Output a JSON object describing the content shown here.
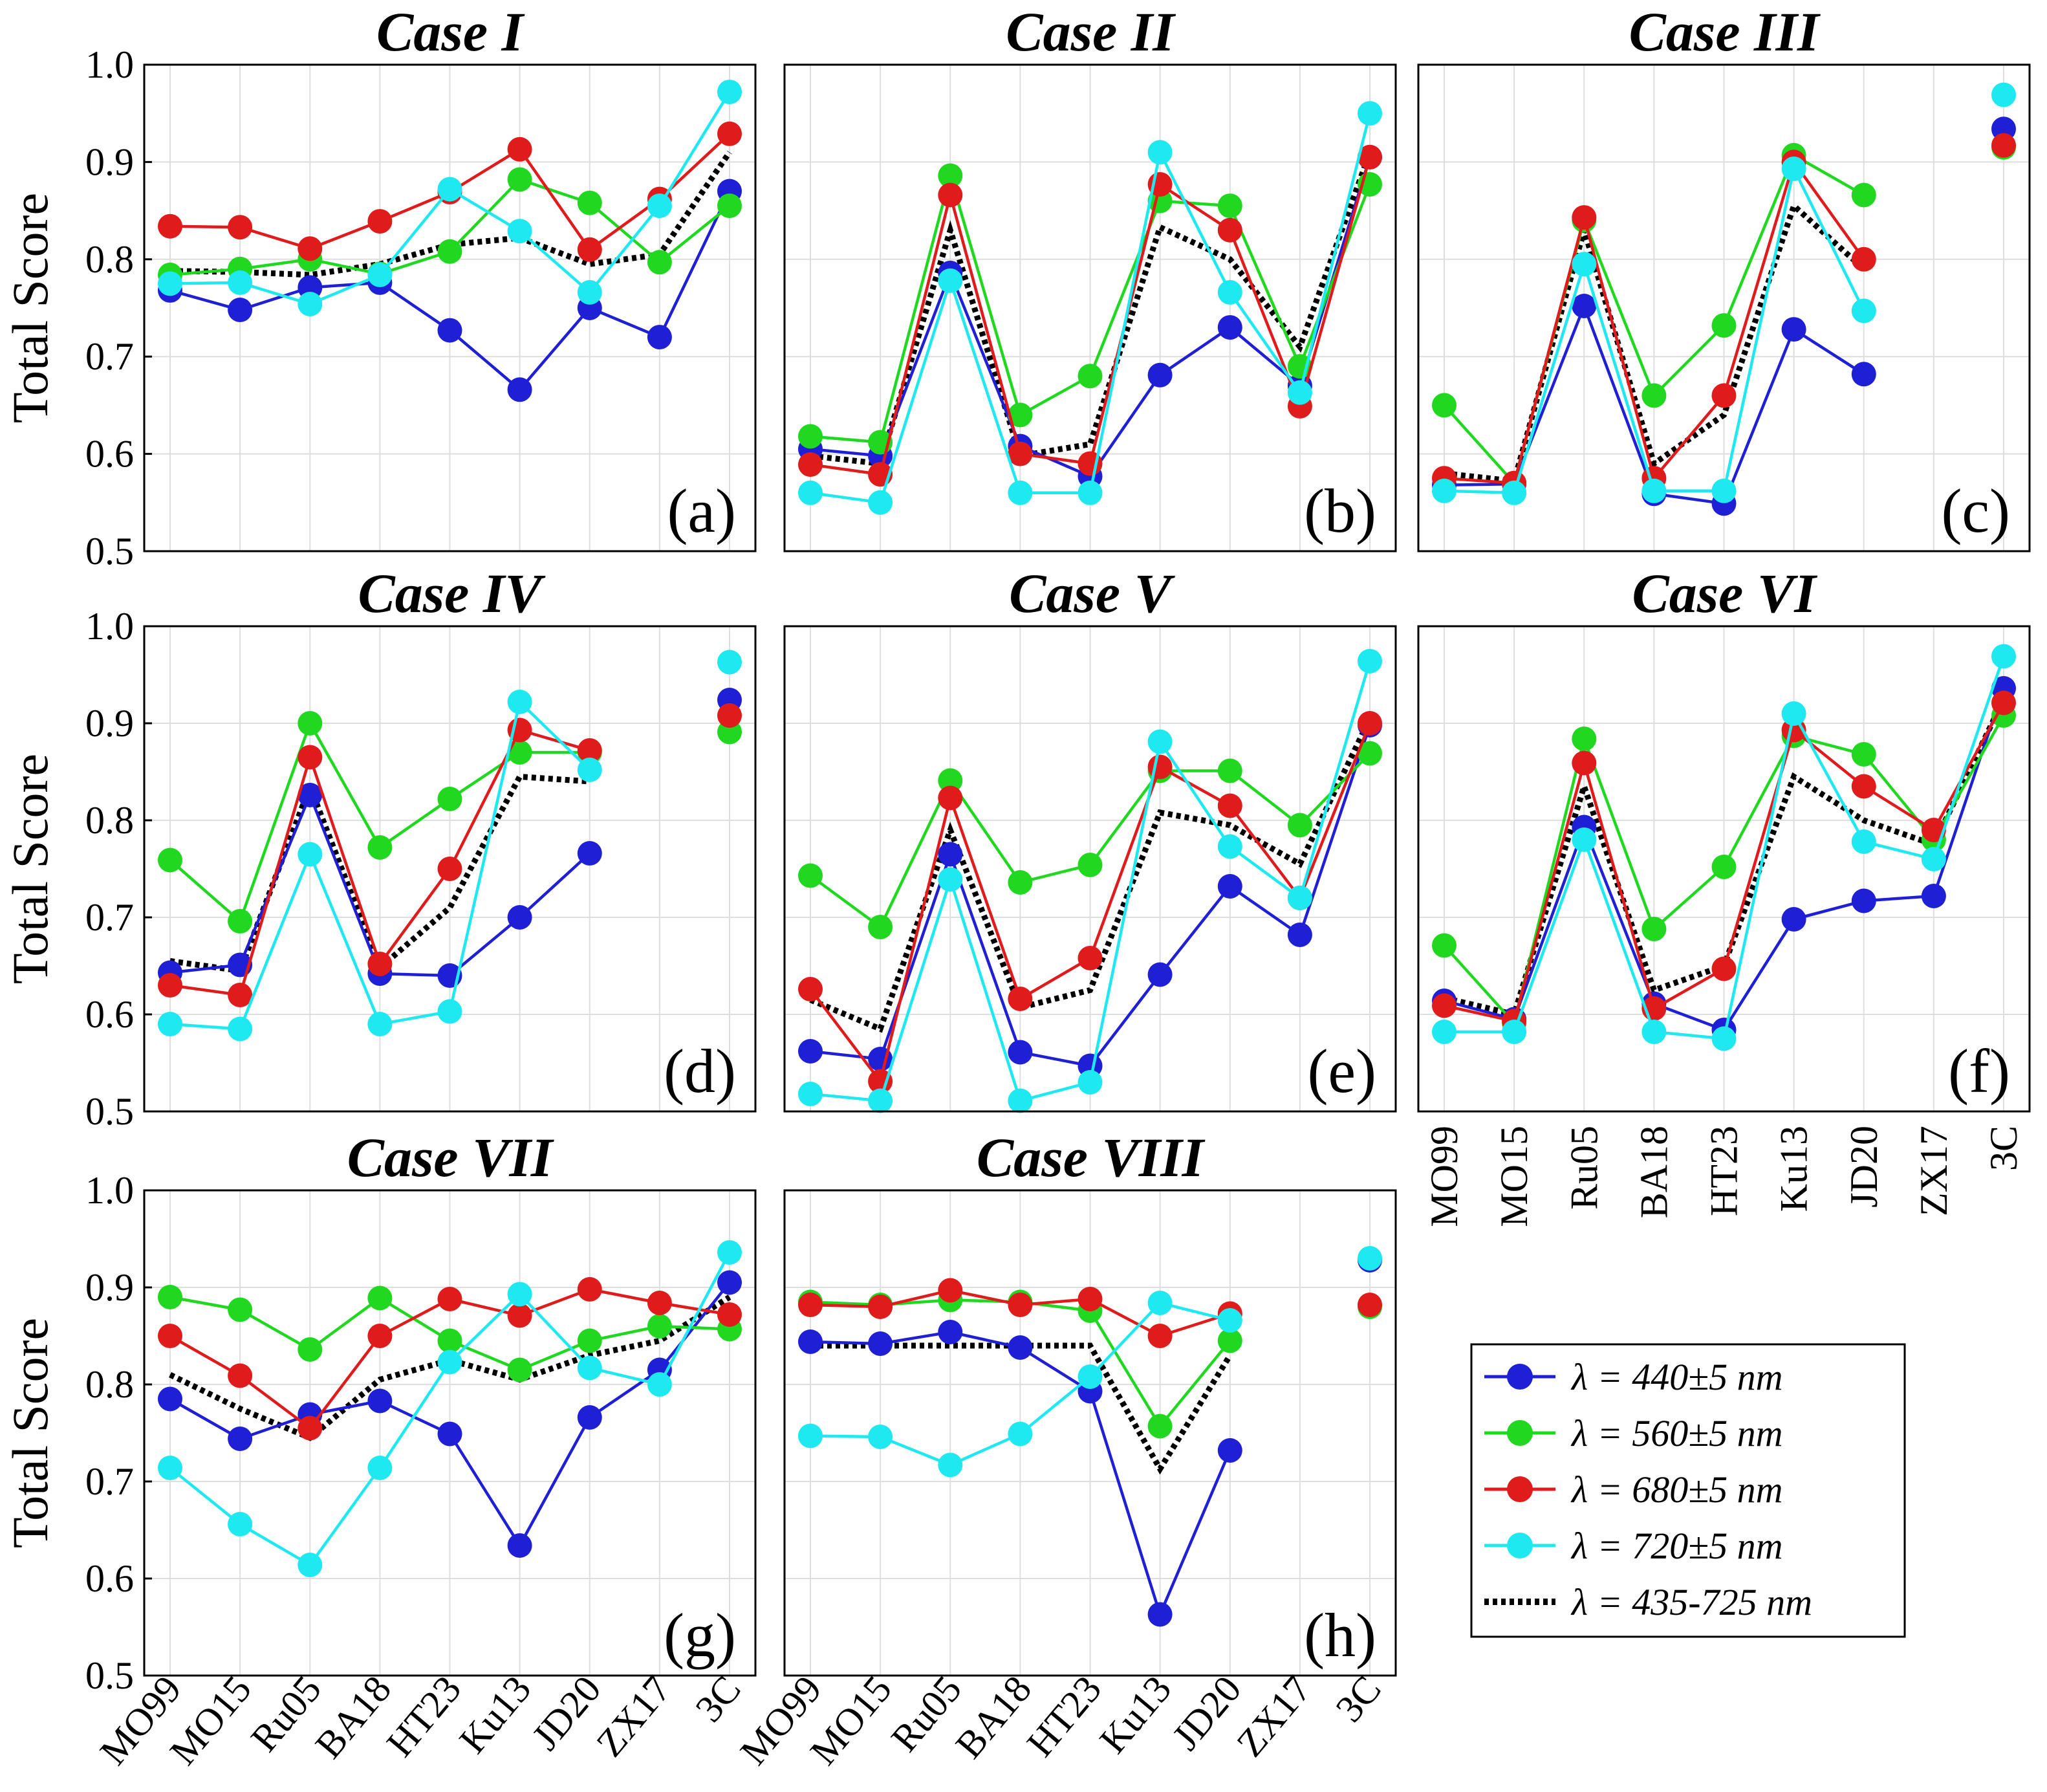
{
  "chart_data": {
    "type": "line",
    "shared": {
      "categories": [
        "MO99",
        "MO15",
        "Ru05",
        "BA18",
        "HT23",
        "Ku13",
        "JD20",
        "ZX17",
        "3C"
      ],
      "ylabel": "Total Score",
      "ylim": [
        0.5,
        1.0
      ],
      "yticks": [
        "0.5",
        "0.6",
        "0.7",
        "0.8",
        "0.9",
        "1.0"
      ],
      "grid": true,
      "legend": {
        "placement": "bottom-right",
        "entries": [
          {
            "key": "b440",
            "label": "λ = 440±5 nm",
            "color": "#1f1fd6",
            "style": "solid-marker"
          },
          {
            "key": "b560",
            "label": "λ = 560±5 nm",
            "color": "#20d820",
            "style": "solid-marker"
          },
          {
            "key": "b680",
            "label": "λ = 680±5 nm",
            "color": "#e01b1b",
            "style": "solid-marker"
          },
          {
            "key": "b720",
            "label": "λ = 720±5 nm",
            "color": "#1ee8f0",
            "style": "solid-marker"
          },
          {
            "key": "broad",
            "label": "λ = 435-725 nm",
            "color": "#000000",
            "style": "dotted"
          }
        ]
      }
    },
    "panels": [
      {
        "title": "Case I",
        "label": "(a)",
        "series": {
          "b440": [
            0.768,
            0.748,
            0.771,
            0.776,
            0.727,
            0.666,
            0.75,
            0.72,
            0.87
          ],
          "b560": [
            0.784,
            0.79,
            0.8,
            0.785,
            0.808,
            0.882,
            0.858,
            0.797,
            0.855
          ],
          "b680": [
            0.834,
            0.833,
            0.811,
            0.839,
            0.869,
            0.913,
            0.81,
            0.862,
            0.929
          ],
          "b720": [
            0.775,
            0.776,
            0.754,
            0.784,
            0.872,
            0.829,
            0.766,
            0.855,
            0.972
          ],
          "broad": [
            0.788,
            0.787,
            0.784,
            0.795,
            0.815,
            0.822,
            0.795,
            0.805,
            0.91
          ]
        }
      },
      {
        "title": "Case II",
        "label": "(b)",
        "series": {
          "b440": [
            0.605,
            0.598,
            0.786,
            0.608,
            0.577,
            0.681,
            0.73,
            0.67,
            0.905
          ],
          "b560": [
            0.618,
            0.612,
            0.886,
            0.64,
            0.68,
            0.86,
            0.855,
            0.69,
            0.877
          ],
          "b680": [
            0.589,
            0.579,
            0.866,
            0.6,
            0.59,
            0.877,
            0.83,
            0.649,
            0.905
          ],
          "b720": [
            0.56,
            0.55,
            0.778,
            0.56,
            0.56,
            0.91,
            0.766,
            0.663,
            0.95
          ],
          "broad": [
            0.598,
            0.59,
            0.83,
            0.598,
            0.61,
            0.833,
            0.8,
            0.71,
            0.91
          ]
        }
      },
      {
        "title": "Case III",
        "label": "(c)",
        "series": {
          "b440": [
            0.568,
            0.569,
            0.752,
            0.559,
            0.549,
            0.728,
            0.682,
            null,
            0.934
          ],
          "b560": [
            0.65,
            0.57,
            0.84,
            0.66,
            0.732,
            0.907,
            0.866,
            null,
            0.915
          ],
          "b680": [
            0.575,
            0.57,
            0.843,
            0.575,
            0.66,
            0.9,
            0.8,
            null,
            0.917
          ],
          "b720": [
            0.562,
            0.56,
            0.795,
            0.562,
            0.562,
            0.893,
            0.747,
            null,
            0.969
          ],
          "broad": [
            0.58,
            0.572,
            0.83,
            0.59,
            0.64,
            0.855,
            0.79,
            null,
            0.92
          ]
        }
      },
      {
        "title": "Case IV",
        "label": "(d)",
        "series": {
          "b440": [
            0.643,
            0.651,
            0.826,
            0.642,
            0.64,
            0.7,
            0.766,
            null,
            0.924
          ],
          "b560": [
            0.759,
            0.696,
            0.9,
            0.772,
            0.822,
            0.87,
            0.87,
            null,
            0.891
          ],
          "b680": [
            0.63,
            0.62,
            0.865,
            0.652,
            0.75,
            0.893,
            0.872,
            null,
            0.908
          ],
          "b720": [
            0.59,
            0.585,
            0.765,
            0.59,
            0.603,
            0.922,
            0.852,
            null,
            0.963
          ],
          "broad": [
            0.655,
            0.645,
            0.835,
            0.648,
            0.71,
            0.845,
            0.84,
            null,
            0.918
          ]
        }
      },
      {
        "title": "Case V",
        "label": "(e)",
        "series": {
          "b440": [
            0.562,
            0.554,
            0.765,
            0.561,
            0.547,
            0.641,
            0.732,
            0.682,
            0.898
          ],
          "b560": [
            0.743,
            0.69,
            0.841,
            0.736,
            0.754,
            0.851,
            0.851,
            0.795,
            0.869
          ],
          "b680": [
            0.626,
            0.531,
            0.823,
            0.616,
            0.658,
            0.855,
            0.815,
            0.72,
            0.9
          ],
          "b720": [
            0.518,
            0.511,
            0.739,
            0.511,
            0.53,
            0.881,
            0.773,
            0.72,
            0.964
          ],
          "broad": [
            0.615,
            0.585,
            0.79,
            0.607,
            0.625,
            0.808,
            0.795,
            0.755,
            0.905
          ]
        }
      },
      {
        "title": "Case VI",
        "label": "(f)",
        "series": {
          "b440": [
            0.614,
            0.595,
            0.793,
            0.611,
            0.584,
            0.698,
            0.717,
            0.722,
            0.936
          ],
          "b560": [
            0.671,
            0.591,
            0.884,
            0.688,
            0.752,
            0.887,
            0.868,
            0.78,
            0.908
          ],
          "b680": [
            0.609,
            0.593,
            0.859,
            0.606,
            0.647,
            0.893,
            0.835,
            0.79,
            0.921
          ],
          "b720": [
            0.582,
            0.582,
            0.78,
            0.582,
            0.575,
            0.91,
            0.778,
            0.76,
            0.969
          ],
          "broad": [
            0.617,
            0.6,
            0.835,
            0.625,
            0.65,
            0.845,
            0.8,
            0.775,
            0.925
          ]
        }
      },
      {
        "title": "Case VII",
        "label": "(g)",
        "series": {
          "b440": [
            0.785,
            0.744,
            0.769,
            0.783,
            0.749,
            0.634,
            0.766,
            0.815,
            0.905
          ],
          "b560": [
            0.89,
            0.877,
            0.836,
            0.889,
            0.845,
            0.815,
            0.845,
            0.86,
            0.857
          ],
          "b680": [
            0.85,
            0.809,
            0.755,
            0.85,
            0.888,
            0.871,
            0.898,
            0.884,
            0.872
          ],
          "b720": [
            0.714,
            0.656,
            0.614,
            0.714,
            0.823,
            0.893,
            0.817,
            0.8,
            0.936
          ],
          "broad": [
            0.81,
            0.775,
            0.745,
            0.805,
            0.825,
            0.805,
            0.83,
            0.845,
            0.89
          ]
        }
      },
      {
        "title": "Case VIII",
        "label": "(h)",
        "series": {
          "b440": [
            0.844,
            0.842,
            0.854,
            0.838,
            0.793,
            0.563,
            0.732,
            null,
            0.928
          ],
          "b560": [
            0.885,
            0.882,
            0.887,
            0.885,
            0.876,
            0.757,
            0.845,
            null,
            0.88
          ],
          "b680": [
            0.882,
            0.88,
            0.897,
            0.882,
            0.888,
            0.85,
            0.873,
            null,
            0.882
          ],
          "b720": [
            0.747,
            0.746,
            0.717,
            0.749,
            0.808,
            0.884,
            0.866,
            null,
            0.93
          ],
          "broad": [
            0.84,
            0.84,
            0.84,
            0.84,
            0.84,
            0.713,
            0.83,
            null,
            0.92
          ]
        }
      }
    ]
  }
}
